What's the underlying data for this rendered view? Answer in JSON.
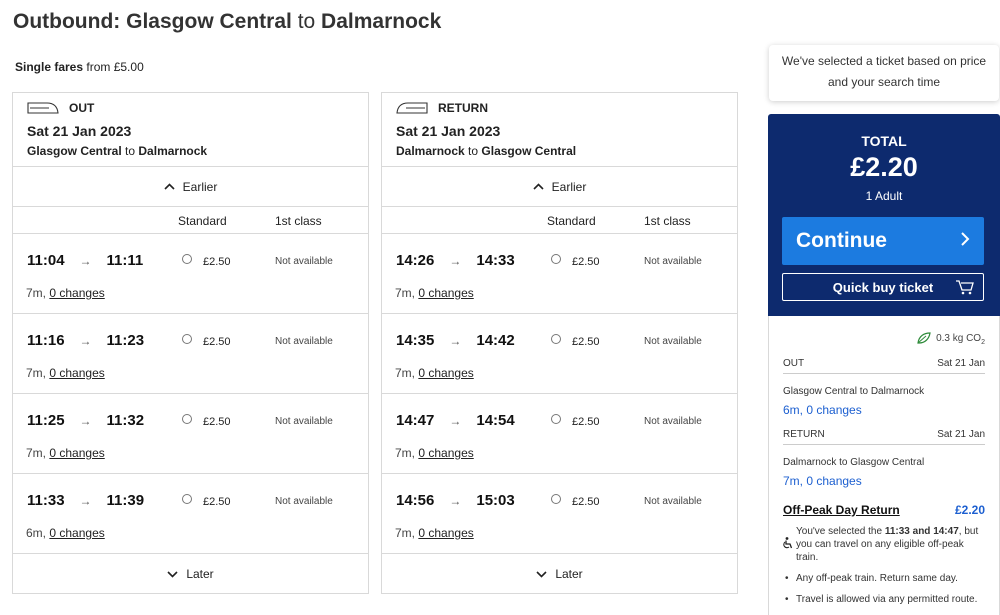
{
  "title": {
    "prefix": "Outbound:",
    "from": "Glasgow Central",
    "to_word": "to",
    "to": "Dalmarnock"
  },
  "fare_summary": {
    "label": "Single fares",
    "text": "from £5.00"
  },
  "outbound": {
    "heading": "OUT",
    "date": "Sat 21 Jan 2023",
    "from": "Glasgow Central",
    "to_word": "to",
    "to": "Dalmarnock",
    "earlier_label": "Earlier",
    "standard_label": "Standard",
    "first_label": "1st class",
    "later_label": "Later",
    "rows": [
      {
        "dep": "11:04",
        "arr": "11:11",
        "price": "£2.50",
        "first": "Not available",
        "dur": "7m,",
        "changes": "0 changes"
      },
      {
        "dep": "11:16",
        "arr": "11:23",
        "price": "£2.50",
        "first": "Not available",
        "dur": "7m,",
        "changes": "0 changes"
      },
      {
        "dep": "11:25",
        "arr": "11:32",
        "price": "£2.50",
        "first": "Not available",
        "dur": "7m,",
        "changes": "0 changes"
      },
      {
        "dep": "11:33",
        "arr": "11:39",
        "price": "£2.50",
        "first": "Not available",
        "dur": "6m,",
        "changes": "0 changes"
      }
    ]
  },
  "return": {
    "heading": "RETURN",
    "date": "Sat 21 Jan 2023",
    "from": "Dalmarnock",
    "to_word": "to",
    "to": "Glasgow Central",
    "earlier_label": "Earlier",
    "standard_label": "Standard",
    "first_label": "1st class",
    "later_label": "Later",
    "rows": [
      {
        "dep": "14:26",
        "arr": "14:33",
        "price": "£2.50",
        "first": "Not available",
        "dur": "7m,",
        "changes": "0 changes"
      },
      {
        "dep": "14:35",
        "arr": "14:42",
        "price": "£2.50",
        "first": "Not available",
        "dur": "7m,",
        "changes": "0 changes"
      },
      {
        "dep": "14:47",
        "arr": "14:54",
        "price": "£2.50",
        "first": "Not available",
        "dur": "7m,",
        "changes": "0 changes"
      },
      {
        "dep": "14:56",
        "arr": "15:03",
        "price": "£2.50",
        "first": "Not available",
        "dur": "7m,",
        "changes": "0 changes"
      }
    ]
  },
  "tip": {
    "line1": "We've selected a ticket based on price",
    "line2": "and your search time"
  },
  "total": {
    "label": "TOTAL",
    "amount": "£2.20",
    "passengers": "1 Adult",
    "continue_label": "Continue",
    "quick_buy_label": "Quick buy ticket"
  },
  "summary": {
    "co2": "0.3 kg CO",
    "co2_sub": "2",
    "out": {
      "label": "OUT",
      "date": "Sat 21 Jan",
      "route": "Glasgow Central to Dalmarnock",
      "changes": "6m, 0 changes"
    },
    "ret": {
      "label": "RETURN",
      "date": "Sat 21 Jan",
      "route": "Dalmarnock to Glasgow Central",
      "changes": "7m, 0 changes"
    },
    "ticket_name": "Off-Peak Day Return",
    "ticket_price": "£2.20",
    "note1_a": "You've selected the ",
    "note1_b": "11:33 and 14:47",
    "note1_c": ", but you can travel on any eligible off-peak train.",
    "note2": "Any off-peak train. Return same day.",
    "note3": "Travel is allowed via any permitted route."
  },
  "colors": {
    "panel": "#0d2a6e",
    "button": "#1c7be0",
    "link": "#1c5fd0",
    "co2_leaf": "#2e8b3a"
  },
  "icons": {
    "train_out": "train-right-icon",
    "train_return": "train-left-icon",
    "chevron_up": "chevron-up-icon",
    "chevron_down": "chevron-down-icon",
    "chevron_right": "chevron-right-icon",
    "cart": "cart-icon",
    "leaf": "leaf-icon",
    "wheelchair": "wheelchair-icon"
  }
}
